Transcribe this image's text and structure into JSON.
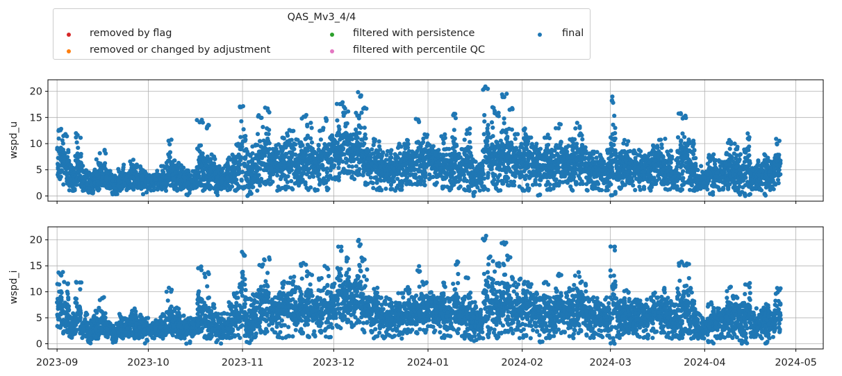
{
  "legend": {
    "title": "QAS_Mv3_4/4",
    "items": [
      {
        "label": "removed by flag",
        "color": "#d62728"
      },
      {
        "label": "removed or changed by adjustment",
        "color": "#ff7f0e"
      },
      {
        "label": "filtered with persistence",
        "color": "#2ca02c"
      },
      {
        "label": "filtered with percentile QC",
        "color": "#e377c2"
      },
      {
        "label": "final",
        "color": "#1f77b4"
      }
    ]
  },
  "chart_data": [
    {
      "type": "scatter",
      "title": "",
      "xlabel": "",
      "ylabel": "wspd_u",
      "xlim": [
        "2023-08-29",
        "2024-05-10"
      ],
      "ylim": [
        -1,
        22.2
      ],
      "yticks": [
        0,
        5,
        10,
        15,
        20
      ],
      "xticks": [
        "2023-09",
        "2023-10",
        "2023-11",
        "2023-12",
        "2024-01",
        "2024-02",
        "2024-03",
        "2024-04",
        "2024-05"
      ],
      "grid": true,
      "series": [
        {
          "name": "final",
          "color": "#1f77b4",
          "x": [
            "2023-09-01",
            "2023-09-03",
            "2023-09-05",
            "2023-09-07",
            "2023-09-09",
            "2023-09-11",
            "2023-09-13",
            "2023-09-15",
            "2023-09-17",
            "2023-09-19",
            "2023-09-21",
            "2023-09-23",
            "2023-09-25",
            "2023-09-27",
            "2023-09-29",
            "2023-10-01",
            "2023-10-03",
            "2023-10-05",
            "2023-10-07",
            "2023-10-09",
            "2023-10-11",
            "2023-10-13",
            "2023-10-15",
            "2023-10-17",
            "2023-10-19",
            "2023-10-21",
            "2023-10-23",
            "2023-10-25",
            "2023-10-27",
            "2023-10-29",
            "2023-10-31",
            "2023-11-02",
            "2023-11-04",
            "2023-11-06",
            "2023-11-08",
            "2023-11-10",
            "2023-11-12",
            "2023-11-14",
            "2023-11-16",
            "2023-11-18",
            "2023-11-20",
            "2023-11-22",
            "2023-11-24",
            "2023-11-26",
            "2023-11-28",
            "2023-11-30",
            "2023-12-02",
            "2023-12-04",
            "2023-12-06",
            "2023-12-08",
            "2023-12-10",
            "2023-12-12",
            "2023-12-14",
            "2023-12-16",
            "2023-12-18",
            "2023-12-20",
            "2023-12-22",
            "2023-12-24",
            "2023-12-26",
            "2023-12-28",
            "2023-12-30",
            "2024-01-01",
            "2024-01-03",
            "2024-01-05",
            "2024-01-07",
            "2024-01-09",
            "2024-01-11",
            "2024-01-13",
            "2024-01-15",
            "2024-01-17",
            "2024-01-19",
            "2024-01-21",
            "2024-01-23",
            "2024-01-25",
            "2024-01-27",
            "2024-01-29",
            "2024-01-31",
            "2024-02-02",
            "2024-02-04",
            "2024-02-06",
            "2024-02-08",
            "2024-02-10",
            "2024-02-12",
            "2024-02-14",
            "2024-02-16",
            "2024-02-18",
            "2024-02-20",
            "2024-02-22",
            "2024-02-24",
            "2024-02-26",
            "2024-02-28",
            "2024-03-01",
            "2024-03-03",
            "2024-03-05",
            "2024-03-07",
            "2024-03-09",
            "2024-03-11",
            "2024-03-13",
            "2024-03-15",
            "2024-03-17",
            "2024-03-19",
            "2024-03-21",
            "2024-03-23",
            "2024-03-25",
            "2024-03-27",
            "2024-03-29",
            "2024-03-31",
            "2024-04-02",
            "2024-04-04",
            "2024-04-06",
            "2024-04-08",
            "2024-04-10",
            "2024-04-12",
            "2024-04-14",
            "2024-04-16",
            "2024-04-18",
            "2024-04-20",
            "2024-04-22",
            "2024-04-24"
          ],
          "y_max": [
            13,
            12,
            6,
            12,
            6,
            5,
            7,
            9,
            5,
            4,
            6,
            5,
            7,
            6,
            5,
            4,
            5,
            6,
            11,
            7,
            6,
            5,
            5,
            15,
            14,
            8,
            6,
            6,
            8,
            10,
            18,
            9,
            10,
            16,
            17,
            9,
            10,
            12,
            13,
            11,
            16,
            14,
            9,
            13,
            15,
            12,
            18,
            17,
            12,
            20,
            17,
            9,
            11,
            9,
            9,
            8,
            10,
            11,
            9,
            15,
            12,
            10,
            9,
            12,
            9,
            16,
            9,
            13,
            8,
            7,
            21,
            17,
            16,
            20,
            17,
            12,
            13,
            12,
            10,
            9,
            12,
            9,
            14,
            10,
            11,
            14,
            12,
            9,
            9,
            8,
            9,
            19,
            9,
            11,
            9,
            9,
            8,
            9,
            10,
            11,
            9,
            8,
            16,
            16,
            11,
            6,
            5,
            8,
            7,
            7,
            11,
            10,
            8,
            12,
            6,
            7,
            8,
            7,
            11
          ],
          "y_min": [
            3,
            2,
            1,
            2,
            1,
            0,
            1,
            2,
            1,
            0,
            1,
            1,
            1,
            1,
            0,
            1,
            1,
            1,
            2,
            1,
            1,
            0,
            1,
            2,
            1,
            1,
            0,
            1,
            1,
            1,
            1,
            0,
            1,
            2,
            2,
            2,
            1,
            1,
            1,
            2,
            2,
            1,
            1,
            2,
            1,
            3,
            3,
            4,
            3,
            4,
            2,
            2,
            1,
            1,
            1,
            1,
            1,
            2,
            2,
            2,
            2,
            3,
            2,
            1,
            1,
            2,
            1,
            1,
            0,
            1,
            1,
            2,
            1,
            2,
            2,
            2,
            1,
            1,
            2,
            0,
            1,
            1,
            2,
            2,
            1,
            2,
            2,
            1,
            1,
            1,
            1,
            0,
            1,
            2,
            2,
            1,
            1,
            1,
            2,
            2,
            1,
            1,
            1,
            2,
            1,
            1,
            1,
            0,
            1,
            1,
            1,
            1,
            0,
            0,
            1,
            1,
            0,
            1,
            2
          ],
          "y_mean": [
            7,
            6,
            3,
            6,
            3,
            2,
            3,
            4,
            3,
            2,
            3,
            3,
            4,
            3,
            3,
            3,
            3,
            3,
            5,
            4,
            3,
            3,
            3,
            6,
            5,
            4,
            3,
            3,
            4,
            5,
            8,
            4,
            5,
            7,
            8,
            6,
            6,
            7,
            7,
            6,
            7,
            7,
            6,
            7,
            7,
            8,
            9,
            10,
            8,
            10,
            8,
            6,
            6,
            5,
            5,
            5,
            5,
            6,
            6,
            7,
            7,
            7,
            6,
            6,
            5,
            7,
            5,
            6,
            4,
            4,
            9,
            8,
            7,
            9,
            8,
            7,
            7,
            7,
            6,
            5,
            6,
            5,
            7,
            6,
            6,
            7,
            7,
            5,
            5,
            5,
            5,
            8,
            5,
            6,
            5,
            5,
            5,
            5,
            6,
            6,
            5,
            4,
            7,
            7,
            5,
            3,
            3,
            4,
            4,
            4,
            5,
            5,
            4,
            5,
            3,
            4,
            4,
            4,
            6
          ]
        }
      ]
    },
    {
      "type": "scatter",
      "title": "",
      "xlabel": "",
      "ylabel": "wspd_i",
      "xlim": [
        "2023-08-29",
        "2024-05-10"
      ],
      "ylim": [
        -1,
        22.5
      ],
      "yticks": [
        0,
        5,
        10,
        15,
        20
      ],
      "xticks": [
        "2023-09",
        "2023-10",
        "2023-11",
        "2023-12",
        "2024-01",
        "2024-02",
        "2024-03",
        "2024-04",
        "2024-05"
      ],
      "grid": true,
      "series": [
        {
          "name": "final",
          "color": "#1f77b4",
          "x": [
            "2023-09-01",
            "2023-09-03",
            "2023-09-05",
            "2023-09-07",
            "2023-09-09",
            "2023-09-11",
            "2023-09-13",
            "2023-09-15",
            "2023-09-17",
            "2023-09-19",
            "2023-09-21",
            "2023-09-23",
            "2023-09-25",
            "2023-09-27",
            "2023-09-29",
            "2023-10-01",
            "2023-10-03",
            "2023-10-05",
            "2023-10-07",
            "2023-10-09",
            "2023-10-11",
            "2023-10-13",
            "2023-10-15",
            "2023-10-17",
            "2023-10-19",
            "2023-10-21",
            "2023-10-23",
            "2023-10-25",
            "2023-10-27",
            "2023-10-29",
            "2023-10-31",
            "2023-11-02",
            "2023-11-04",
            "2023-11-06",
            "2023-11-08",
            "2023-11-10",
            "2023-11-12",
            "2023-11-14",
            "2023-11-16",
            "2023-11-18",
            "2023-11-20",
            "2023-11-22",
            "2023-11-24",
            "2023-11-26",
            "2023-11-28",
            "2023-11-30",
            "2023-12-02",
            "2023-12-04",
            "2023-12-06",
            "2023-12-08",
            "2023-12-10",
            "2023-12-12",
            "2023-12-14",
            "2023-12-16",
            "2023-12-18",
            "2023-12-20",
            "2023-12-22",
            "2023-12-24",
            "2023-12-26",
            "2023-12-28",
            "2023-12-30",
            "2024-01-01",
            "2024-01-03",
            "2024-01-05",
            "2024-01-07",
            "2024-01-09",
            "2024-01-11",
            "2024-01-13",
            "2024-01-15",
            "2024-01-17",
            "2024-01-19",
            "2024-01-21",
            "2024-01-23",
            "2024-01-25",
            "2024-01-27",
            "2024-01-29",
            "2024-01-31",
            "2024-02-02",
            "2024-02-04",
            "2024-02-06",
            "2024-02-08",
            "2024-02-10",
            "2024-02-12",
            "2024-02-14",
            "2024-02-16",
            "2024-02-18",
            "2024-02-20",
            "2024-02-22",
            "2024-02-24",
            "2024-02-26",
            "2024-02-28",
            "2024-03-01",
            "2024-03-03",
            "2024-03-05",
            "2024-03-07",
            "2024-03-09",
            "2024-03-11",
            "2024-03-13",
            "2024-03-15",
            "2024-03-17",
            "2024-03-19",
            "2024-03-21",
            "2024-03-23",
            "2024-03-25",
            "2024-03-27",
            "2024-03-29",
            "2024-03-31",
            "2024-04-02",
            "2024-04-04",
            "2024-04-06",
            "2024-04-08",
            "2024-04-10",
            "2024-04-12",
            "2024-04-14",
            "2024-04-16",
            "2024-04-18",
            "2024-04-20",
            "2024-04-22",
            "2024-04-24"
          ],
          "y_max": [
            14,
            12,
            6,
            12,
            6,
            5,
            7,
            9,
            5,
            4,
            6,
            5,
            7,
            6,
            5,
            4,
            5,
            6,
            11,
            7,
            6,
            5,
            5,
            15,
            14,
            8,
            6,
            6,
            8,
            10,
            18,
            9,
            10,
            16,
            17,
            9,
            10,
            12,
            13,
            11,
            16,
            14,
            9,
            13,
            15,
            12,
            19,
            17,
            12,
            20,
            17,
            9,
            11,
            9,
            9,
            8,
            10,
            11,
            9,
            15,
            12,
            10,
            9,
            12,
            9,
            16,
            9,
            13,
            8,
            7,
            21,
            17,
            16,
            20,
            17,
            12,
            13,
            12,
            10,
            9,
            12,
            9,
            14,
            10,
            11,
            14,
            12,
            9,
            9,
            8,
            9,
            19,
            9,
            11,
            9,
            9,
            8,
            9,
            10,
            11,
            9,
            8,
            16,
            16,
            11,
            6,
            5,
            8,
            7,
            7,
            11,
            10,
            8,
            12,
            6,
            7,
            8,
            7,
            11
          ],
          "y_min": [
            3,
            2,
            1,
            2,
            1,
            0,
            1,
            2,
            1,
            0,
            1,
            1,
            1,
            1,
            0,
            1,
            1,
            1,
            2,
            1,
            1,
            0,
            1,
            2,
            1,
            1,
            0,
            1,
            1,
            1,
            1,
            0,
            1,
            2,
            2,
            2,
            1,
            1,
            1,
            2,
            2,
            1,
            1,
            2,
            1,
            3,
            3,
            4,
            3,
            4,
            2,
            2,
            1,
            1,
            1,
            1,
            1,
            2,
            2,
            2,
            2,
            3,
            2,
            1,
            1,
            2,
            1,
            1,
            0,
            1,
            1,
            2,
            1,
            2,
            2,
            2,
            1,
            1,
            2,
            0,
            1,
            1,
            2,
            2,
            1,
            2,
            2,
            1,
            1,
            1,
            1,
            0,
            1,
            2,
            2,
            1,
            1,
            1,
            2,
            2,
            1,
            1,
            1,
            2,
            1,
            1,
            1,
            0,
            1,
            1,
            1,
            1,
            0,
            0,
            1,
            1,
            0,
            1,
            2
          ],
          "y_mean": [
            7,
            6,
            3,
            6,
            3,
            2,
            3,
            4,
            3,
            2,
            3,
            3,
            4,
            3,
            3,
            3,
            3,
            3,
            5,
            4,
            3,
            3,
            3,
            6,
            5,
            4,
            3,
            3,
            4,
            5,
            8,
            4,
            5,
            7,
            8,
            6,
            6,
            7,
            7,
            6,
            7,
            7,
            6,
            7,
            7,
            8,
            9,
            10,
            8,
            10,
            8,
            6,
            6,
            5,
            5,
            5,
            5,
            6,
            6,
            7,
            7,
            7,
            6,
            6,
            5,
            7,
            5,
            6,
            4,
            4,
            9,
            8,
            7,
            9,
            8,
            7,
            7,
            7,
            6,
            5,
            6,
            5,
            7,
            6,
            6,
            7,
            7,
            5,
            5,
            5,
            5,
            8,
            5,
            6,
            5,
            5,
            5,
            5,
            6,
            6,
            5,
            4,
            7,
            7,
            5,
            3,
            3,
            4,
            4,
            4,
            5,
            5,
            4,
            5,
            3,
            4,
            4,
            4,
            6
          ]
        }
      ]
    }
  ]
}
